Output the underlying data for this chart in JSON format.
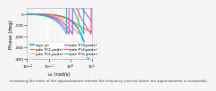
{
  "title": "",
  "xlabel": "ω (rad/s)",
  "ylabel": "Phase (deg)",
  "xlim": [
    0.01,
    10
  ],
  "ylim": [
    -400,
    50
  ],
  "yticks": [
    0,
    -100,
    -200,
    -300,
    -400
  ],
  "background_color": "#f5f5f5",
  "grid_color": "#ffffff",
  "lines": [
    {
      "label": "exp(-p)",
      "color": "#00aaff",
      "lw": 1.2,
      "style": "-"
    },
    {
      "label": "pde P(1,pade)",
      "color": "#ff6600",
      "lw": 0.8,
      "style": "-"
    },
    {
      "label": "pde P(2,pade)",
      "color": "#ffaa44",
      "lw": 0.8,
      "style": "-"
    },
    {
      "label": "pde P(3,pade)",
      "color": "#aa44ff",
      "lw": 0.8,
      "style": "-"
    },
    {
      "label": "pde P(4,pade)",
      "color": "#ff44aa",
      "lw": 0.8,
      "style": "-"
    },
    {
      "label": "pde P(5,pade)",
      "color": "#00cccc",
      "lw": 0.8,
      "style": "-"
    }
  ],
  "legend_fontsize": 3.2,
  "axis_fontsize": 4,
  "tick_fontsize": 3.2,
  "caption_fontsize": 2.8,
  "caption": "Increasing the order of the approximation extends the frequency interval where the approximation is acceptable."
}
